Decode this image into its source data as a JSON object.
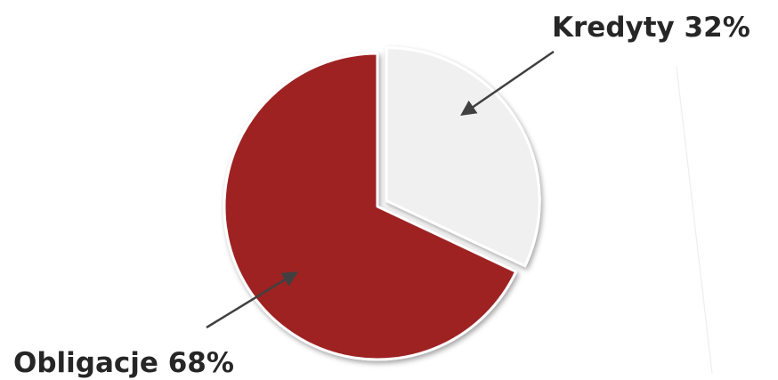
{
  "chart_data": {
    "type": "pie",
    "title": "",
    "slices": [
      {
        "label": "Kredyty 32%",
        "name": "Kredyty",
        "value": 32,
        "color": "#f0f0f0",
        "exploded": true
      },
      {
        "label": "Obligacje 68%",
        "name": "Obligacje",
        "value": 68,
        "color": "#9e2222",
        "exploded": false
      }
    ],
    "start_angle_deg": 0,
    "direction": "clockwise",
    "legend": "none",
    "label_style": "external-with-arrows"
  },
  "colors": {
    "kredyty_fill": "#f0f0f0",
    "obligacje_fill": "#9e2222",
    "label_text": "#262626",
    "arrow": "#404040"
  }
}
